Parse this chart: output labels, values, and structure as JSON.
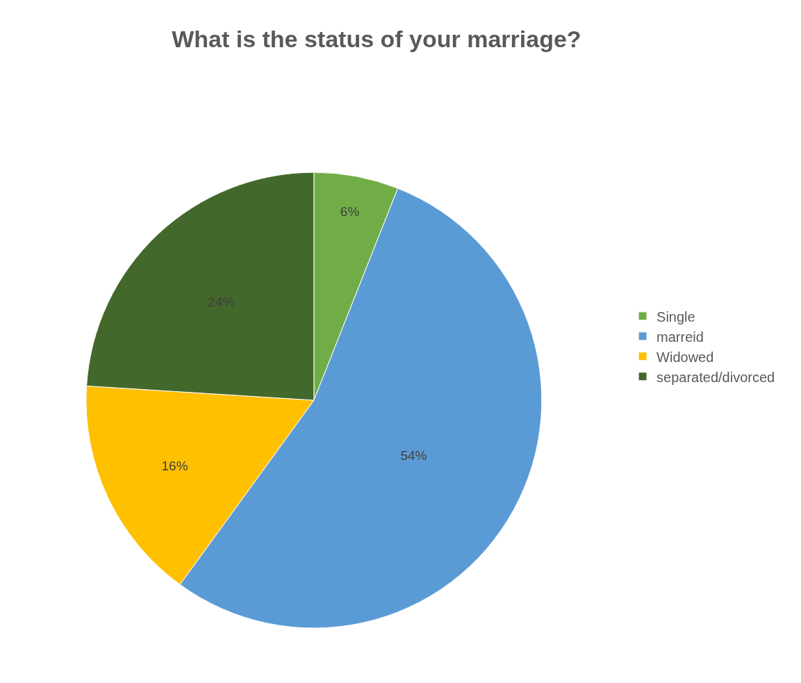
{
  "chart_data": {
    "type": "pie",
    "title": "What is the status of your marriage?",
    "categories": [
      "Single",
      "marreid",
      "Widowed",
      "separated/divorced"
    ],
    "values": [
      6,
      54,
      16,
      24
    ],
    "value_labels": [
      "6%",
      "54%",
      "16%",
      "24%"
    ],
    "colors": [
      "#70ad47",
      "#5b9bd5",
      "#ffc000",
      "#43682b"
    ],
    "legend": "right"
  }
}
